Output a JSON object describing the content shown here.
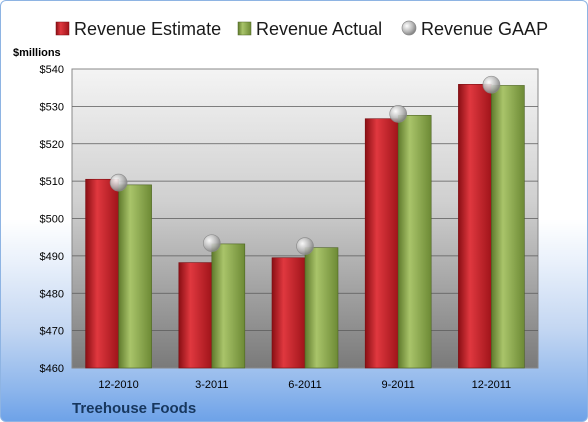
{
  "colors": {
    "estimate": "#c0181f",
    "actual": "#8aa84a",
    "gaap": "#b0b0b0",
    "company_label": "#17375e"
  },
  "chart_data": {
    "type": "bar",
    "title": "",
    "unit_label": "$millions",
    "company": "Treehouse Foods",
    "categories": [
      "12-2010",
      "3-2011",
      "6-2011",
      "9-2011",
      "12-2011"
    ],
    "series": [
      {
        "name": "Revenue Estimate",
        "type": "bar",
        "values": [
          510.5,
          488.2,
          489.5,
          526.7,
          535.9
        ]
      },
      {
        "name": "Revenue Actual",
        "type": "bar",
        "values": [
          509.0,
          493.2,
          492.2,
          527.6,
          535.6
        ]
      },
      {
        "name": "Revenue GAAP",
        "type": "marker",
        "values": [
          509.6,
          493.4,
          492.6,
          528.0,
          535.8
        ]
      }
    ],
    "ylim": [
      460,
      540
    ],
    "yticks": [
      "$460",
      "$470",
      "$480",
      "$490",
      "$500",
      "$510",
      "$520",
      "$530",
      "$540"
    ],
    "grid": true,
    "legend_position": "top"
  }
}
